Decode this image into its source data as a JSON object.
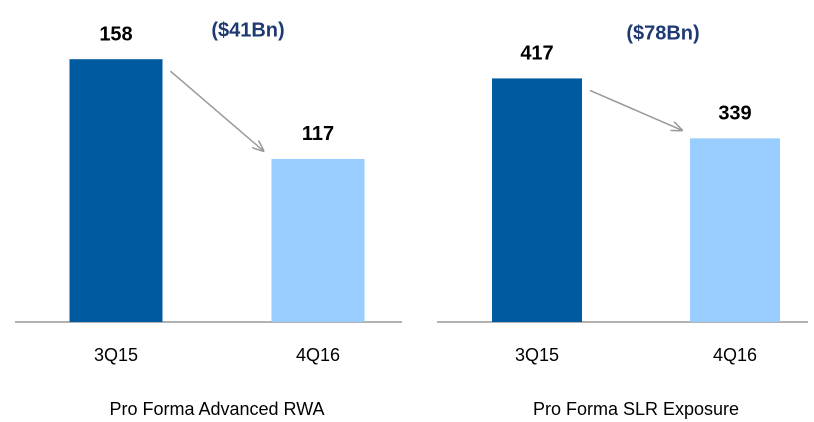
{
  "chart_data": [
    {
      "type": "bar",
      "title": "Pro Forma Advanced RWA",
      "annotation": "($41Bn)",
      "categories": [
        "3Q15",
        "4Q16"
      ],
      "values": [
        158,
        117
      ],
      "colors": [
        "#005aa0",
        "#99ccff"
      ],
      "ylim": [
        50,
        170
      ]
    },
    {
      "type": "bar",
      "title": "Pro Forma SLR Exposure",
      "annotation": "($78Bn)",
      "categories": [
        "3Q15",
        "4Q16"
      ],
      "values": [
        417,
        339
      ],
      "colors": [
        "#005aa0",
        "#99ccff"
      ],
      "ylim": [
        100,
        480
      ]
    }
  ]
}
